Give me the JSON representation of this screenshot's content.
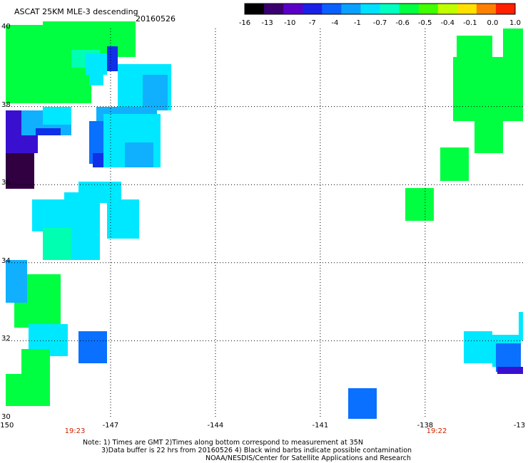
{
  "header": {
    "title": "ASCAT 25KM MLE-3 descending",
    "date": "20160526"
  },
  "colorbar": {
    "ticks": [
      "-16",
      "-13",
      "-10",
      "-7",
      "-4",
      "-1",
      "-0.7",
      "-0.6",
      "-0.5",
      "-0.4",
      "-0.1",
      "0.0",
      "1.0"
    ],
    "colors": [
      "#000000",
      "#3a0070",
      "#5a00c8",
      "#1a20e6",
      "#0a60ff",
      "#0aa0ff",
      "#00e0ff",
      "#00ffc0",
      "#00ff40",
      "#40ff00",
      "#c0ff00",
      "#ffe000",
      "#ff8000",
      "#ff2000"
    ]
  },
  "map": {
    "lat_labels": [
      "40",
      "38",
      "36",
      "34",
      "32",
      "30"
    ],
    "lon_labels": [
      "-150",
      "-147",
      "-144",
      "-141",
      "-138",
      "-13"
    ],
    "times": [
      "19:23",
      "19:22"
    ],
    "palette": {
      "dark_purple": "#300040",
      "indigo": "#3a10d0",
      "blue": "#1030e8",
      "mid_blue": "#0a70ff",
      "light_blue": "#10b0ff",
      "cyan": "#00e8ff",
      "aqua": "#00ffb0",
      "green": "#00ff40"
    }
  },
  "notes": {
    "line1": "Note: 1) Times are GMT 2)Times along bottom correspond to measurement at 35N",
    "line2": "3)Data buffer is 22 hrs from 20160526 4) Black wind barbs indicate possible contamination",
    "line3": "NOAA/NESDIS/Center for Satellite Applications and Research"
  }
}
